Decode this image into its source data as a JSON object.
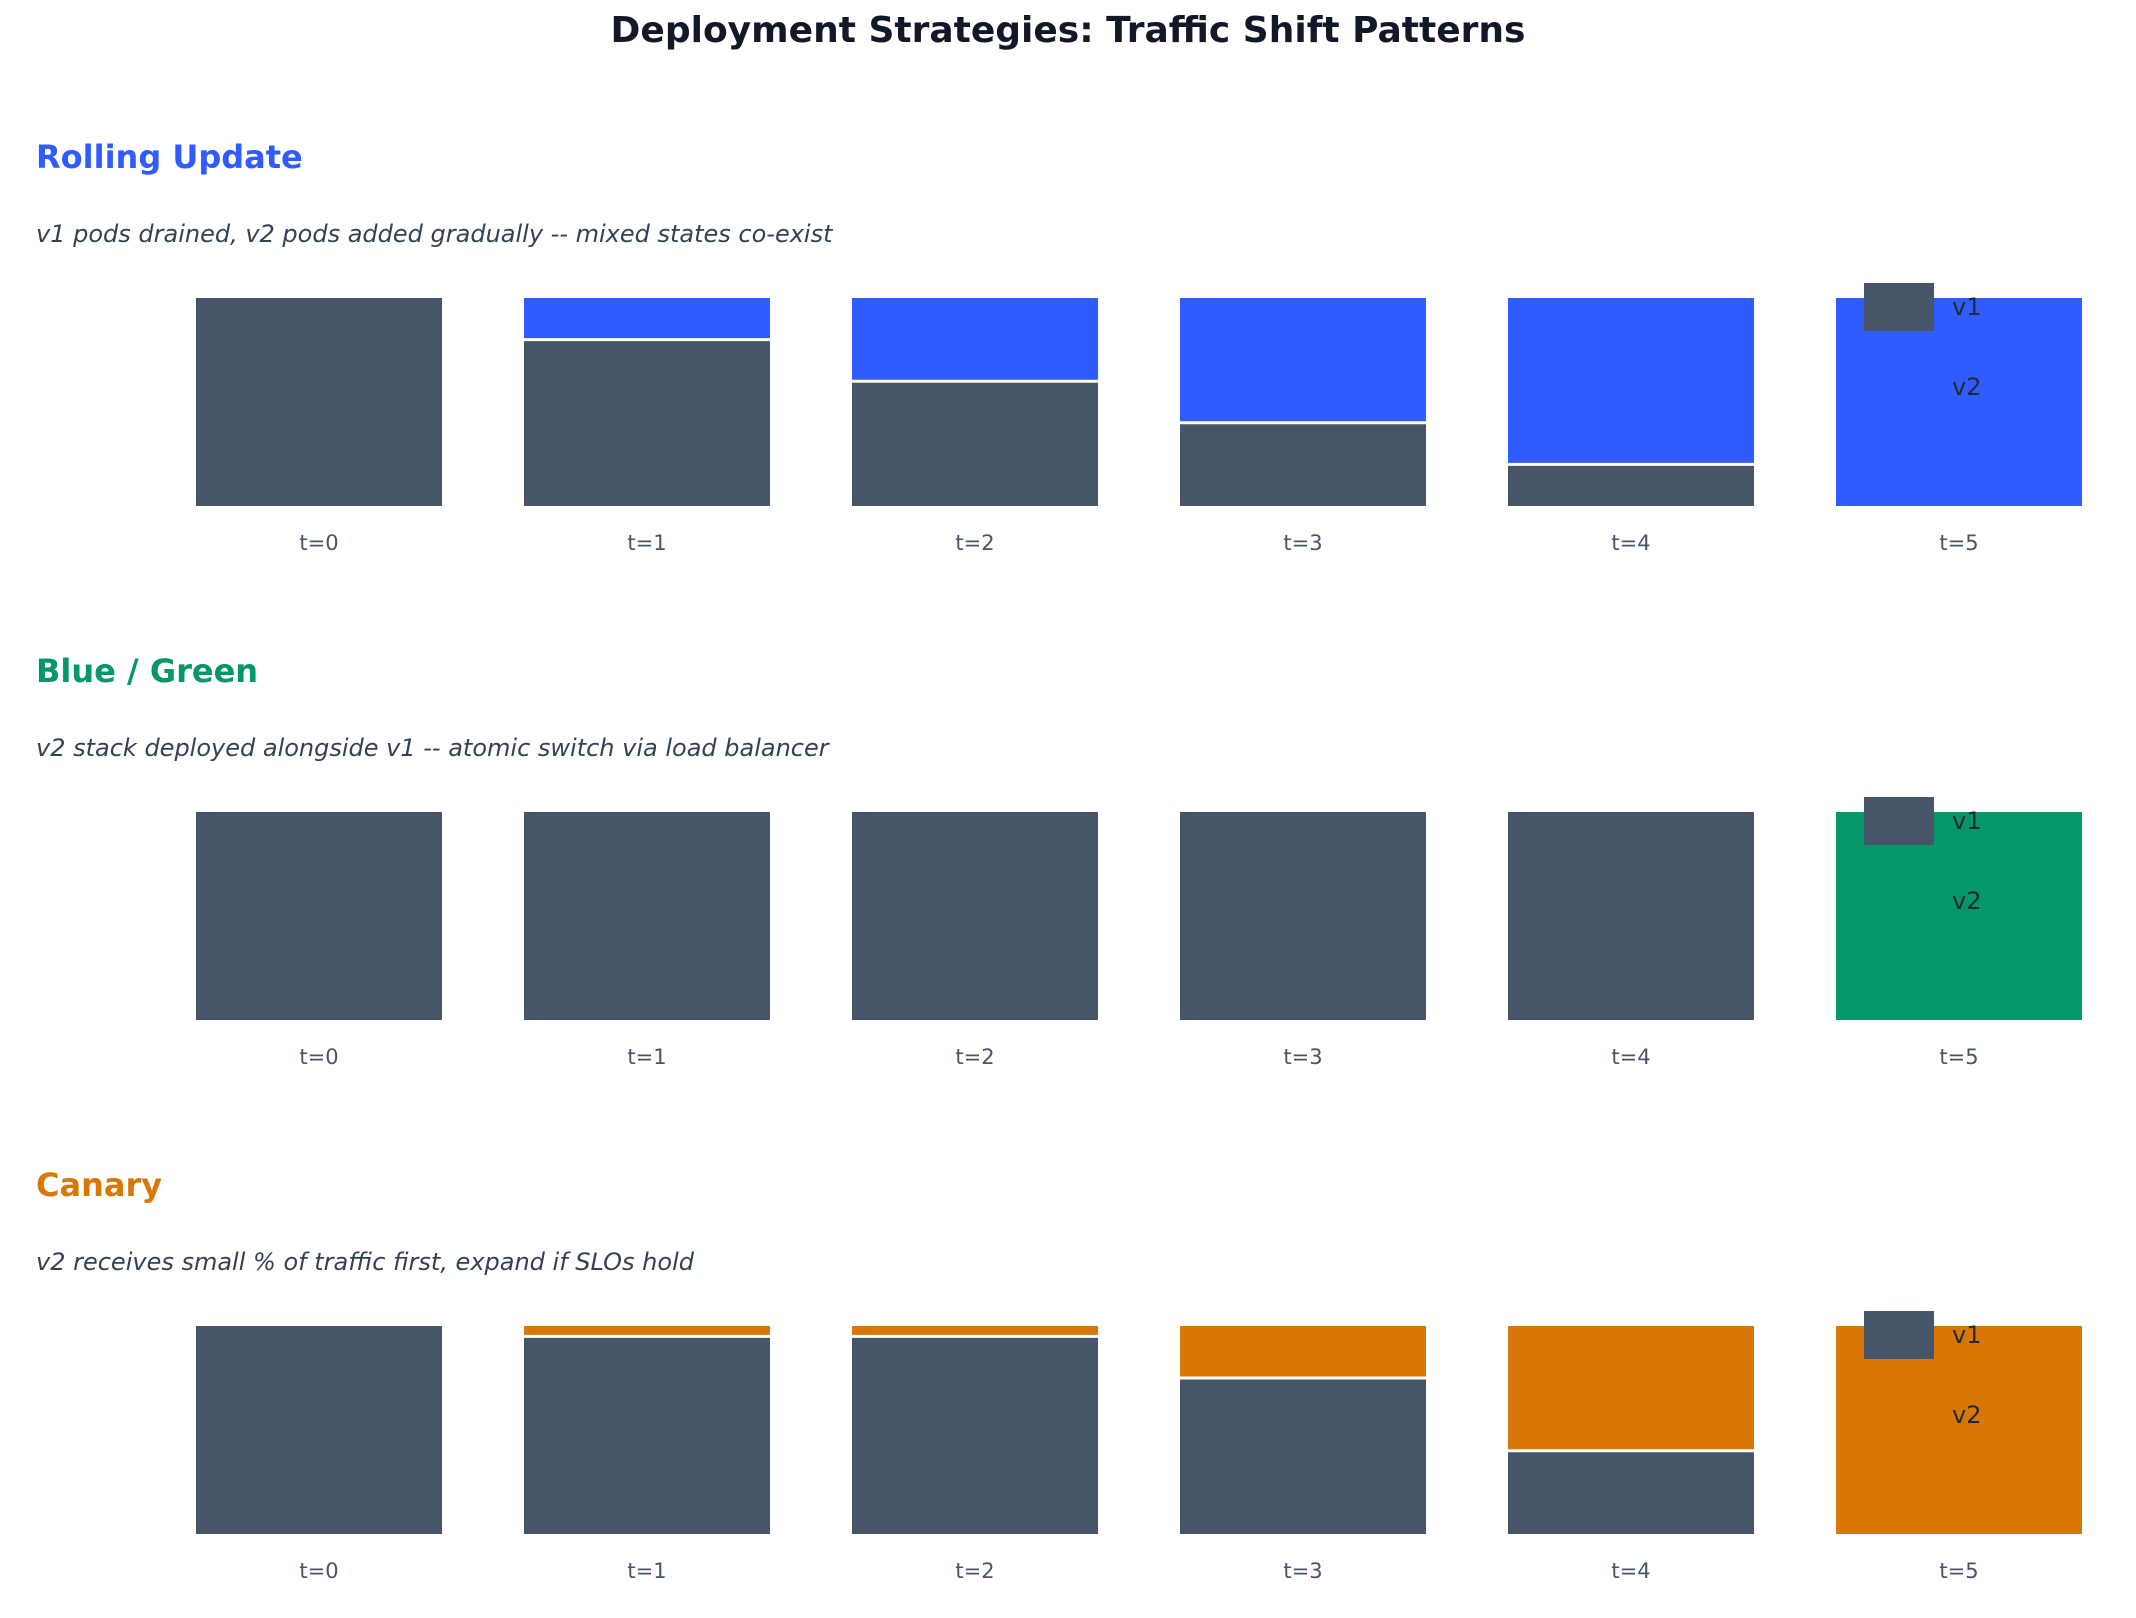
{
  "title": "Deployment Strategies: Traffic Shift Patterns",
  "colors": {
    "v1": "#475569",
    "title_text": "#111827",
    "subtitle_text": "#334155",
    "divider": "#ffffff"
  },
  "chart_data": [
    {
      "type": "bar",
      "stacked": true,
      "normalized": true,
      "title": "Rolling Update",
      "subtitle": "v1 pods drained, v2 pods added gradually -- mixed states co-exist",
      "accent_color": "#2f5bff",
      "categories": [
        "t=0",
        "t=1",
        "t=2",
        "t=3",
        "t=4",
        "t=5"
      ],
      "series": [
        {
          "name": "v1",
          "color": "#475569",
          "values": [
            100,
            80,
            60,
            40,
            20,
            0
          ]
        },
        {
          "name": "v2",
          "color": "#2f5bff",
          "values": [
            0,
            20,
            40,
            60,
            80,
            100
          ]
        }
      ],
      "ylim": [
        0,
        100
      ],
      "legend": "top-right",
      "grid": false
    },
    {
      "type": "bar",
      "stacked": true,
      "normalized": true,
      "title": "Blue / Green",
      "subtitle": "v2 stack deployed alongside v1 -- atomic switch via load balancer",
      "accent_color": "#059669",
      "categories": [
        "t=0",
        "t=1",
        "t=2",
        "t=3",
        "t=4",
        "t=5"
      ],
      "series": [
        {
          "name": "v1",
          "color": "#475569",
          "values": [
            100,
            100,
            100,
            100,
            100,
            0
          ]
        },
        {
          "name": "v2",
          "color": "#059669",
          "values": [
            0,
            0,
            0,
            0,
            0,
            100
          ]
        }
      ],
      "ylim": [
        0,
        100
      ],
      "legend": "top-right",
      "grid": false
    },
    {
      "type": "bar",
      "stacked": true,
      "normalized": true,
      "title": "Canary",
      "subtitle": "v2 receives small % of traffic first, expand if SLOs hold",
      "accent_color": "#d97706",
      "categories": [
        "t=0",
        "t=1",
        "t=2",
        "t=3",
        "t=4",
        "t=5"
      ],
      "series": [
        {
          "name": "v1",
          "color": "#475569",
          "values": [
            100,
            95,
            95,
            75,
            40,
            0
          ]
        },
        {
          "name": "v2",
          "color": "#d97706",
          "values": [
            0,
            5,
            5,
            25,
            60,
            100
          ]
        }
      ],
      "ylim": [
        0,
        100
      ],
      "legend": "top-right",
      "grid": false
    }
  ]
}
